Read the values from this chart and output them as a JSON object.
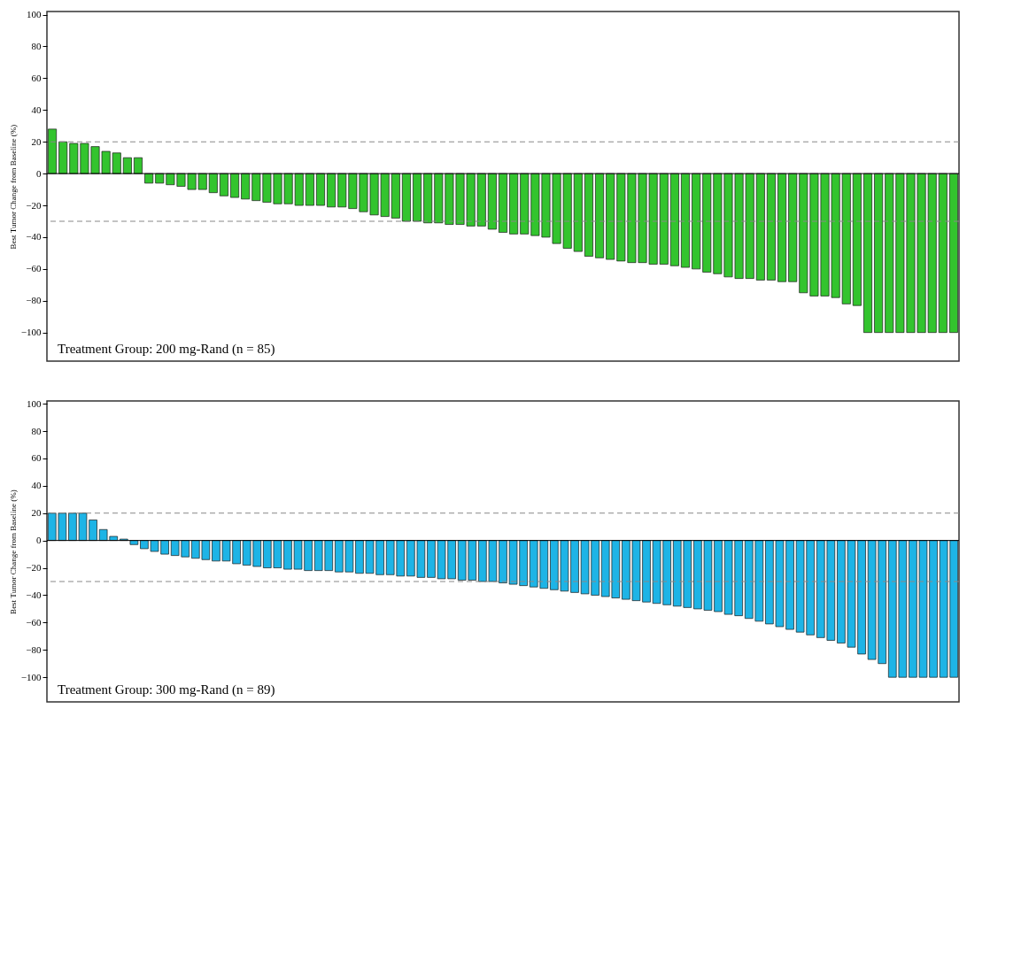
{
  "chart_data": [
    {
      "type": "bar",
      "ylabel": "Best Tumor Change from Baseline (%)",
      "categories": [
        null,
        null,
        null,
        null,
        null,
        null,
        null,
        null,
        null,
        null,
        null,
        null,
        null,
        null,
        null,
        null,
        null,
        null,
        null,
        null,
        null,
        null,
        null,
        null,
        null,
        null,
        null,
        null,
        null,
        null,
        null,
        null,
        null,
        null,
        null,
        null,
        null,
        null,
        null,
        null,
        null,
        null,
        null,
        null,
        null,
        null,
        null,
        null,
        null,
        null,
        null,
        null,
        null,
        null,
        null,
        null,
        null,
        null,
        null,
        null,
        null,
        null,
        null,
        null,
        null,
        null,
        null,
        null,
        null,
        null,
        null,
        null,
        null,
        null,
        null,
        null,
        null,
        null,
        null,
        null,
        null,
        null,
        null,
        null,
        null
      ],
      "series": [
        {
          "color": "#33c42e",
          "values": [
            28,
            20,
            19,
            19,
            17,
            14,
            13,
            10,
            10,
            -6,
            -6,
            -7,
            -8,
            -10,
            -10,
            -12,
            -14,
            -15,
            -16,
            -17,
            -18,
            -19,
            -19,
            -20,
            -20,
            -20,
            -21,
            -21,
            -22,
            -24,
            -26,
            -27,
            -28,
            -30,
            -30,
            -31,
            -31,
            -32,
            -32,
            -33,
            -33,
            -35,
            -37,
            -38,
            -38,
            -39,
            -40,
            -44,
            -47,
            -49,
            -52,
            -53,
            -54,
            -55,
            -56,
            -56,
            -57,
            -57,
            -58,
            -59,
            -60,
            -62,
            -63,
            -65,
            -66,
            -66,
            -67,
            -67,
            -68,
            -68,
            -75,
            -77,
            -77,
            -78,
            -82,
            -83,
            -100,
            -100,
            -100,
            -100,
            -100,
            -100,
            -100,
            -100,
            -100
          ]
        }
      ],
      "ylim": [
        -118,
        102
      ],
      "yticks": [
        -100,
        -80,
        -60,
        -40,
        -20,
        0,
        20,
        40,
        60,
        80,
        100
      ],
      "tick_labels": "y",
      "grid": false,
      "ref_lines": [
        {
          "axis": "y",
          "value": 20,
          "color": "#888888",
          "line_style": "dashed"
        },
        {
          "axis": "y",
          "value": -30,
          "color": "#888888",
          "line_style": "dashed"
        }
      ],
      "annotations": [
        "Treatment Group: 200 mg-Rand (n = 85)"
      ]
    },
    {
      "type": "bar",
      "ylabel": "Best Tumor Change from Baseline (%)",
      "categories": [
        null,
        null,
        null,
        null,
        null,
        null,
        null,
        null,
        null,
        null,
        null,
        null,
        null,
        null,
        null,
        null,
        null,
        null,
        null,
        null,
        null,
        null,
        null,
        null,
        null,
        null,
        null,
        null,
        null,
        null,
        null,
        null,
        null,
        null,
        null,
        null,
        null,
        null,
        null,
        null,
        null,
        null,
        null,
        null,
        null,
        null,
        null,
        null,
        null,
        null,
        null,
        null,
        null,
        null,
        null,
        null,
        null,
        null,
        null,
        null,
        null,
        null,
        null,
        null,
        null,
        null,
        null,
        null,
        null,
        null,
        null,
        null,
        null,
        null,
        null,
        null,
        null,
        null,
        null,
        null,
        null,
        null,
        null,
        null,
        null,
        null,
        null,
        null,
        null
      ],
      "series": [
        {
          "color": "#1eb4e6",
          "values": [
            20,
            20,
            20,
            20,
            15,
            8,
            3,
            1,
            -3,
            -6,
            -8,
            -10,
            -11,
            -12,
            -13,
            -14,
            -15,
            -15,
            -17,
            -18,
            -19,
            -20,
            -20,
            -21,
            -21,
            -22,
            -22,
            -22,
            -23,
            -23,
            -24,
            -24,
            -25,
            -25,
            -26,
            -26,
            -27,
            -27,
            -28,
            -28,
            -29,
            -29,
            -30,
            -30,
            -31,
            -32,
            -33,
            -34,
            -35,
            -36,
            -37,
            -38,
            -39,
            -40,
            -41,
            -42,
            -43,
            -44,
            -45,
            -46,
            -47,
            -48,
            -49,
            -50,
            -51,
            -52,
            -54,
            -55,
            -57,
            -59,
            -61,
            -63,
            -65,
            -67,
            -69,
            -71,
            -73,
            -75,
            -78,
            -83,
            -87,
            -90,
            -100,
            -100,
            -100,
            -100,
            -100,
            -100,
            -100
          ]
        }
      ],
      "ylim": [
        -118,
        102
      ],
      "yticks": [
        -100,
        -80,
        -60,
        -40,
        -20,
        0,
        20,
        40,
        60,
        80,
        100
      ],
      "tick_labels": "y",
      "grid": false,
      "ref_lines": [
        {
          "axis": "y",
          "value": 20,
          "color": "#888888",
          "line_style": "dashed"
        },
        {
          "axis": "y",
          "value": -30,
          "color": "#888888",
          "line_style": "dashed"
        }
      ],
      "annotations": [
        "Treatment Group: 300 mg-Rand (n = 89)"
      ]
    }
  ]
}
